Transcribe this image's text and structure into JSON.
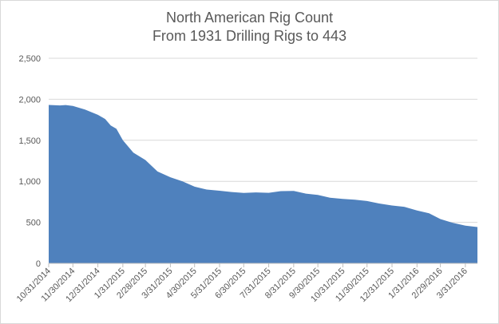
{
  "chart_data": {
    "type": "area",
    "title_lines": [
      "North American Rig Count",
      "From 1931 Drilling Rigs to 443"
    ],
    "xlabel": "",
    "ylabel": "",
    "ylim": [
      0,
      2500
    ],
    "yticks": [
      0,
      500,
      1000,
      1500,
      2000,
      2500
    ],
    "ytick_labels": [
      "0",
      "500",
      "1,000",
      "1,500",
      "2,000",
      "2,500"
    ],
    "grid": true,
    "legend": "none",
    "fill_color": "#4f81bd",
    "x_start": "2014-10-31",
    "x_end": "2016-04-15",
    "x_tick_labels": [
      {
        "date": "2014-10-31",
        "label": "10/31/2014"
      },
      {
        "date": "2014-11-30",
        "label": "11/30/2014"
      },
      {
        "date": "2014-12-31",
        "label": "12/31/2014"
      },
      {
        "date": "2015-01-31",
        "label": "1/31/2015"
      },
      {
        "date": "2015-02-28",
        "label": "2/28/2015"
      },
      {
        "date": "2015-03-31",
        "label": "3/31/2015"
      },
      {
        "date": "2015-04-30",
        "label": "4/30/2015"
      },
      {
        "date": "2015-05-31",
        "label": "5/31/2015"
      },
      {
        "date": "2015-06-30",
        "label": "6/30/2015"
      },
      {
        "date": "2015-07-31",
        "label": "7/31/2015"
      },
      {
        "date": "2015-08-31",
        "label": "8/31/2015"
      },
      {
        "date": "2015-09-30",
        "label": "9/30/2015"
      },
      {
        "date": "2015-10-31",
        "label": "10/31/2015"
      },
      {
        "date": "2015-11-30",
        "label": "11/30/2015"
      },
      {
        "date": "2015-12-31",
        "label": "12/31/2015"
      },
      {
        "date": "2016-01-31",
        "label": "1/31/2016"
      },
      {
        "date": "2016-02-29",
        "label": "2/29/2016"
      },
      {
        "date": "2016-03-31",
        "label": "3/31/2016"
      }
    ],
    "series": [
      {
        "x": [
          "2014-10-31",
          "2014-11-14",
          "2014-11-21",
          "2014-11-30",
          "2014-12-15",
          "2014-12-31",
          "2015-01-09",
          "2015-01-16",
          "2015-01-23",
          "2015-01-31",
          "2015-02-13",
          "2015-02-28",
          "2015-03-15",
          "2015-03-31",
          "2015-04-15",
          "2015-04-30",
          "2015-05-15",
          "2015-05-31",
          "2015-06-15",
          "2015-06-30",
          "2015-07-15",
          "2015-07-31",
          "2015-08-15",
          "2015-08-31",
          "2015-09-15",
          "2015-09-30",
          "2015-10-15",
          "2015-10-31",
          "2015-11-15",
          "2015-11-30",
          "2015-12-15",
          "2015-12-31",
          "2016-01-15",
          "2016-01-31",
          "2016-02-15",
          "2016-02-29",
          "2016-03-15",
          "2016-03-31",
          "2016-04-15"
        ],
        "y": [
          1931,
          1925,
          1930,
          1918,
          1875,
          1810,
          1760,
          1680,
          1640,
          1500,
          1350,
          1260,
          1120,
          1050,
          1000,
          935,
          900,
          885,
          870,
          858,
          865,
          860,
          880,
          882,
          850,
          835,
          800,
          785,
          775,
          760,
          730,
          705,
          690,
          645,
          610,
          540,
          495,
          460,
          443
        ]
      }
    ]
  }
}
